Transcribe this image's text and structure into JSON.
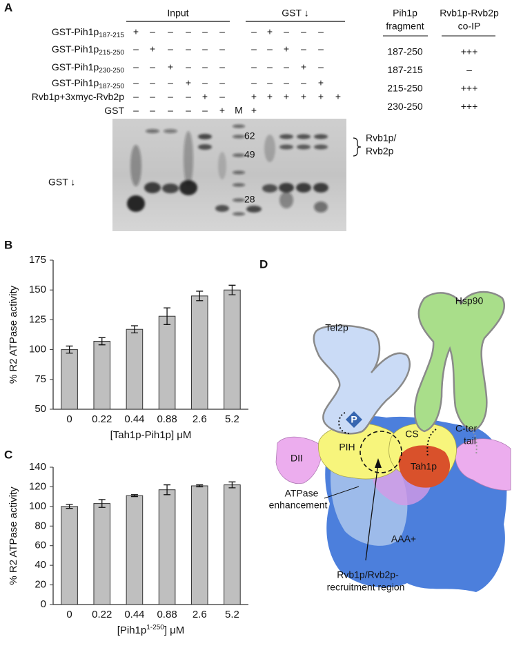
{
  "panel_labels": [
    "A",
    "B",
    "C",
    "D"
  ],
  "panel_a": {
    "input_header": "Input",
    "pulldown_header": "GST ↓",
    "rows": [
      {
        "name": "GST-Pih1p",
        "sub": "187-215",
        "input": [
          "+",
          "–",
          "–",
          "–",
          "–",
          "–"
        ],
        "pulldown": [
          "–",
          "+",
          "–",
          "–",
          "–"
        ]
      },
      {
        "name": "GST-Pih1p",
        "sub": "215-250",
        "input": [
          "–",
          "+",
          "–",
          "–",
          "–",
          "–"
        ],
        "pulldown": [
          "–",
          "–",
          "+",
          "–",
          "–"
        ]
      },
      {
        "name": "GST-Pih1p",
        "sub": "230-250",
        "input": [
          "–",
          "–",
          "+",
          "–",
          "–",
          "–"
        ],
        "pulldown": [
          "–",
          "–",
          "–",
          "+",
          "–"
        ]
      },
      {
        "name": "GST-Pih1p",
        "sub": "187-250",
        "input": [
          "–",
          "–",
          "–",
          "+",
          "–",
          "–"
        ],
        "pulldown": [
          "–",
          "–",
          "–",
          "–",
          "+"
        ]
      },
      {
        "name": "Rvb1p+3xmyc-Rvb2p",
        "input": [
          "–",
          "–",
          "–",
          "–",
          "+",
          "–"
        ],
        "pulldown": [
          "+",
          "+",
          "+",
          "+",
          "+",
          "+"
        ]
      },
      {
        "name": "GST",
        "input": [
          "–",
          "–",
          "–",
          "–",
          "–",
          "+"
        ],
        "pulldown": [
          "+"
        ]
      }
    ],
    "marker_lane": "M",
    "markers": [
      62,
      49,
      28
    ],
    "band_label": [
      "Rvb1p/",
      "Rvb2p"
    ],
    "gst_label": "GST ↓",
    "table": {
      "header": [
        [
          "Pih1p",
          "fragment"
        ],
        [
          "Rvb1p-Rvb2p",
          "co-IP"
        ]
      ],
      "rows": [
        [
          "187-250",
          "+++"
        ],
        [
          "187-215",
          "–"
        ],
        [
          "215-250",
          "+++"
        ],
        [
          "230-250",
          "+++"
        ]
      ]
    }
  },
  "chart_data": [
    {
      "type": "bar",
      "categories": [
        "0",
        "0.22",
        "0.44",
        "0.88",
        "2.6",
        "5.2"
      ],
      "values": [
        100,
        107,
        117,
        128,
        145,
        150
      ],
      "errors": [
        3,
        3,
        3,
        7,
        4,
        4
      ],
      "color": "#bfbfbf",
      "ylim": [
        50,
        175
      ],
      "yticks": [
        50,
        75,
        100,
        125,
        150,
        175
      ],
      "ylabel": "% R2 ATPase activity",
      "xlabel": [
        "[Tah1p-Pih1p] μM"
      ]
    },
    {
      "type": "bar",
      "categories": [
        "0",
        "0.22",
        "0.44",
        "0.88",
        "2.6",
        "5.2"
      ],
      "values": [
        100,
        103,
        111,
        117,
        121,
        122
      ],
      "errors": [
        2,
        4,
        1,
        5,
        1,
        3
      ],
      "color": "#bfbfbf",
      "ylim": [
        0,
        140
      ],
      "yticks": [
        0,
        20,
        40,
        60,
        80,
        100,
        120,
        140
      ],
      "ylabel": "% R2 ATPase activity",
      "xlabel": [
        "[Pih1p",
        "1-250",
        "] μM"
      ]
    }
  ],
  "panel_d": {
    "hsp90": "Hsp90",
    "tel2p": "Tel2p",
    "phospho": "P",
    "cs": "CS",
    "c_ter_tail": [
      "C-ter",
      "tail"
    ],
    "pih": "PIH",
    "dii": "DII",
    "tah1p": "Tah1p",
    "atpase": [
      "ATPase",
      "enhancement"
    ],
    "aaa": "AAA+",
    "recruitment": [
      "Rvb1p/Rvb2p-",
      "recruitment region"
    ]
  }
}
